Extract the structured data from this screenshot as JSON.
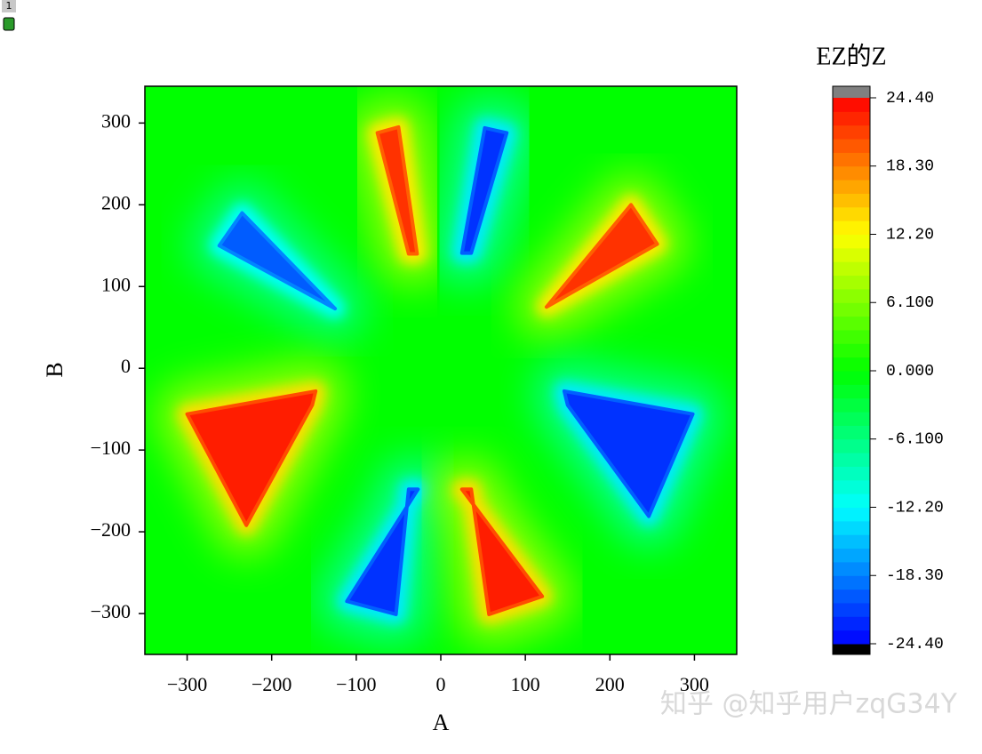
{
  "badge": "1",
  "watermark": "知乎 @知乎用户zqG34Y",
  "chart_data": {
    "type": "contour",
    "xlabel": "A",
    "ylabel": "B",
    "colorbar_title": "EZ的Z",
    "xlim": [
      -350,
      350
    ],
    "ylim": [
      -350,
      345
    ],
    "xticks": [
      {
        "value": -300,
        "label": "−300"
      },
      {
        "value": -200,
        "label": "−200"
      },
      {
        "value": -100,
        "label": "−100"
      },
      0,
      100,
      200,
      300
    ],
    "yticks": [
      {
        "value": -300,
        "label": "−300"
      },
      {
        "value": -200,
        "label": "−200"
      },
      {
        "value": -100,
        "label": "−100"
      },
      0,
      100,
      200,
      300
    ],
    "zlim": [
      -24.4,
      24.4
    ],
    "zticks": [
      {
        "value": 24.4,
        "label": "24.40"
      },
      {
        "value": 18.3,
        "label": "18.30"
      },
      {
        "value": 12.2,
        "label": "12.20"
      },
      {
        "value": 6.1,
        "label": "6.100"
      },
      {
        "value": 0,
        "label": "0.000"
      },
      {
        "value": -6.1,
        "label": "-6.100"
      },
      {
        "value": -12.2,
        "label": "-12.20"
      },
      {
        "value": -18.3,
        "label": "-18.30"
      },
      {
        "value": -24.4,
        "label": "-24.40"
      }
    ],
    "colormap": [
      "#0000ff",
      "#00ffff",
      "#00ff00",
      "#ffff00",
      "#ff0000"
    ],
    "over_color": "#808080",
    "under_color": "#000000",
    "levels": 40,
    "background_z": 0,
    "features": [
      {
        "x": [
          -75,
          -50,
          -28,
          -38
        ],
        "y": [
          288,
          295,
          140,
          140
        ],
        "z": 22
      },
      {
        "x": [
          52,
          78,
          36,
          25
        ],
        "y": [
          294,
          288,
          141,
          141
        ],
        "z": -22
      },
      {
        "x": [
          -262,
          -235,
          -125
        ],
        "y": [
          150,
          190,
          73
        ],
        "z": -20
      },
      {
        "x": [
          256,
          225,
          125
        ],
        "y": [
          152,
          200,
          75
        ],
        "z": 22
      },
      {
        "x": [
          -300,
          -148,
          -152,
          -230
        ],
        "y": [
          -56,
          -28,
          -45,
          -192
        ],
        "z": 23
      },
      {
        "x": [
          298,
          146,
          150,
          246
        ],
        "y": [
          -56,
          -28,
          -45,
          -181
        ],
        "z": -22
      },
      {
        "x": [
          -27,
          -38,
          -53,
          -111
        ],
        "y": [
          -148,
          -148,
          -301,
          -285
        ],
        "z": -22
      },
      {
        "x": [
          25,
          36,
          57,
          120
        ],
        "y": [
          -148,
          -148,
          -301,
          -279
        ],
        "z": 23
      }
    ]
  }
}
